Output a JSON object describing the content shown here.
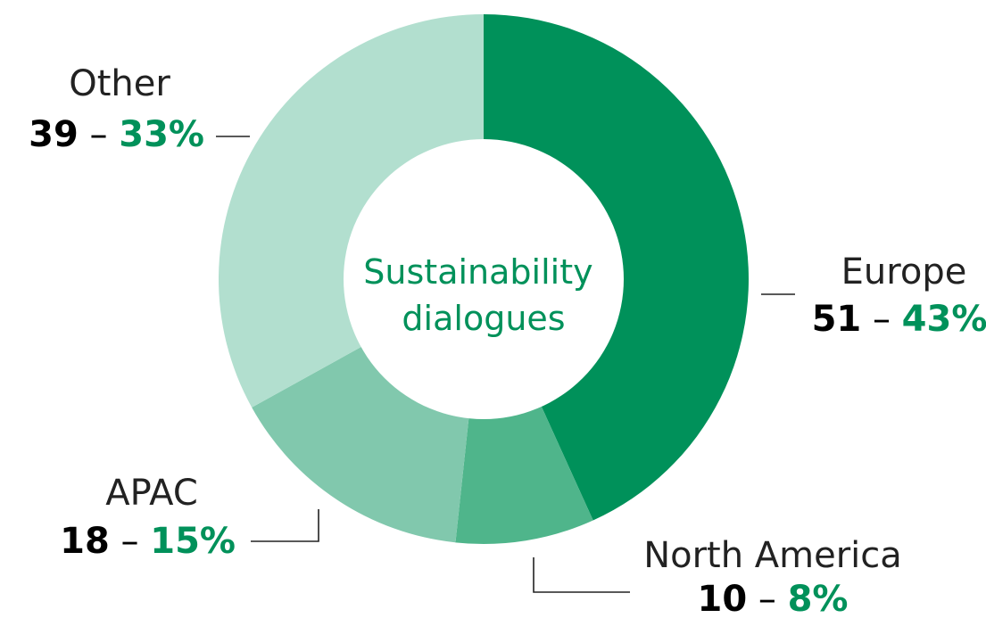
{
  "colors": {
    "accent": "#00915a",
    "text": "#000000",
    "background": "#ffffff"
  },
  "center_label": [
    "Sustainability",
    "dialogues"
  ],
  "chart_data": {
    "type": "pie",
    "style": "donut",
    "title": "Sustainability dialogues",
    "slices": [
      {
        "name": "Europe",
        "count": 51,
        "percent": 43,
        "count_label": "51",
        "separator": "–",
        "percent_label": "43%",
        "color": "#00915a"
      },
      {
        "name": "North America",
        "count": 10,
        "percent": 8,
        "count_label": "10",
        "separator": "–",
        "percent_label": "8%",
        "color": "#4fb58b"
      },
      {
        "name": "APAC",
        "count": 18,
        "percent": 15,
        "count_label": "18",
        "separator": "–",
        "percent_label": "15%",
        "color": "#81c8ad"
      },
      {
        "name": "Other",
        "count": 39,
        "percent": 33,
        "count_label": "39",
        "separator": "–",
        "percent_label": "33%",
        "color": "#b2dfcf"
      }
    ]
  }
}
